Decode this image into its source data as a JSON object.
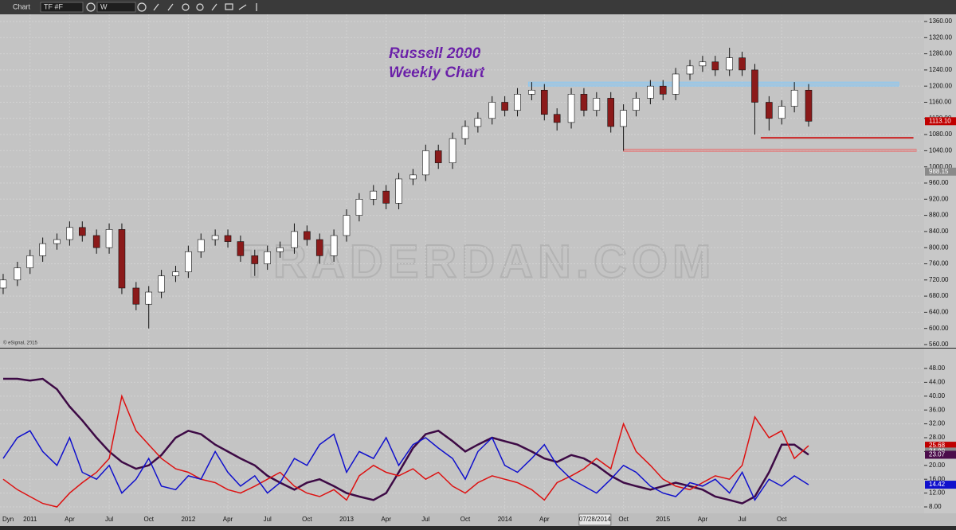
{
  "toolbar": {
    "window": "Chart",
    "symbol": "TF #F",
    "interval": "W"
  },
  "chart_data": [
    {
      "type": "candlestick",
      "title": "Russell 2000",
      "subtitle": "Weekly Chart",
      "watermark": "TRADERDAN.COM",
      "credit": "© eSignal, 2015",
      "up_color": "#ffffff",
      "down_color": "#8b1a1a",
      "x": [
        2010.83,
        2010.92,
        2011.0,
        2011.08,
        2011.17,
        2011.25,
        2011.33,
        2011.42,
        2011.5,
        2011.58,
        2011.67,
        2011.75,
        2011.83,
        2011.92,
        2012.0,
        2012.08,
        2012.17,
        2012.25,
        2012.33,
        2012.42,
        2012.5,
        2012.58,
        2012.67,
        2012.75,
        2012.83,
        2012.92,
        2013.0,
        2013.08,
        2013.17,
        2013.25,
        2013.33,
        2013.42,
        2013.5,
        2013.58,
        2013.67,
        2013.75,
        2013.83,
        2013.92,
        2014.0,
        2014.08,
        2014.17,
        2014.25,
        2014.33,
        2014.42,
        2014.5,
        2014.58,
        2014.67,
        2014.75,
        2014.83,
        2014.92,
        2015.0,
        2015.08,
        2015.17,
        2015.25,
        2015.33,
        2015.42,
        2015.5,
        2015.58,
        2015.67,
        2015.75,
        2015.83,
        2015.92
      ],
      "open": [
        700,
        720,
        750,
        780,
        810,
        820,
        850,
        830,
        800,
        845,
        700,
        660,
        690,
        730,
        740,
        790,
        820,
        830,
        815,
        780,
        760,
        790,
        800,
        840,
        820,
        780,
        830,
        880,
        920,
        940,
        910,
        970,
        980,
        1040,
        1010,
        1070,
        1100,
        1120,
        1160,
        1140,
        1180,
        1190,
        1130,
        1110,
        1180,
        1140,
        1170,
        1100,
        1140,
        1170,
        1200,
        1180,
        1230,
        1250,
        1260,
        1240,
        1270,
        1240,
        1160,
        1120,
        1150,
        1190
      ],
      "high": [
        735,
        765,
        795,
        825,
        835,
        865,
        865,
        845,
        860,
        860,
        715,
        705,
        745,
        755,
        805,
        835,
        845,
        845,
        830,
        795,
        805,
        815,
        860,
        855,
        835,
        845,
        895,
        935,
        955,
        955,
        985,
        995,
        1055,
        1055,
        1085,
        1115,
        1135,
        1175,
        1175,
        1195,
        1210,
        1205,
        1145,
        1195,
        1195,
        1185,
        1185,
        1155,
        1185,
        1215,
        1215,
        1245,
        1265,
        1275,
        1275,
        1295,
        1285,
        1255,
        1175,
        1165,
        1210,
        1205
      ],
      "low": [
        685,
        705,
        735,
        765,
        795,
        805,
        815,
        785,
        785,
        685,
        645,
        600,
        675,
        715,
        725,
        775,
        805,
        800,
        765,
        730,
        745,
        775,
        785,
        805,
        760,
        765,
        815,
        865,
        905,
        895,
        895,
        955,
        965,
        995,
        995,
        1055,
        1085,
        1105,
        1125,
        1125,
        1165,
        1115,
        1090,
        1095,
        1125,
        1125,
        1085,
        1040,
        1125,
        1155,
        1165,
        1165,
        1215,
        1235,
        1225,
        1225,
        1225,
        1080,
        1090,
        1105,
        1135,
        1100
      ],
      "close": [
        720,
        750,
        780,
        810,
        820,
        850,
        830,
        800,
        845,
        700,
        660,
        690,
        730,
        740,
        790,
        820,
        830,
        815,
        780,
        760,
        790,
        800,
        840,
        820,
        780,
        830,
        880,
        920,
        940,
        910,
        970,
        980,
        1040,
        1010,
        1070,
        1100,
        1120,
        1160,
        1140,
        1180,
        1190,
        1130,
        1110,
        1180,
        1140,
        1170,
        1100,
        1140,
        1170,
        1200,
        1180,
        1230,
        1250,
        1260,
        1240,
        1270,
        1240,
        1160,
        1120,
        1150,
        1190,
        1113.1
      ],
      "zones": [
        {
          "x": [
            2014.15,
            2016.49
          ],
          "y": [
            1200,
            1210
          ],
          "color": "#8fc8f0"
        },
        {
          "x": [
            2015.62,
            2016.58
          ],
          "y": [
            1071,
            1073
          ],
          "color": "#cc2222"
        },
        {
          "x": [
            2014.75,
            2016.6
          ],
          "y": [
            1038,
            1044
          ],
          "color": "#d88"
        }
      ],
      "markers": [
        {
          "value": 1113.1,
          "label": "1113.10",
          "color": "#c00000"
        },
        {
          "value": 988.15,
          "color": "#8a8a8a"
        }
      ],
      "ylim": [
        560,
        1360
      ],
      "yticks": [
        {
          "value": 560,
          "label": "560.00"
        },
        {
          "value": 600,
          "label": "600.00"
        },
        {
          "value": 640,
          "label": "640.00"
        },
        {
          "value": 680,
          "label": "680.00"
        },
        {
          "value": 720,
          "label": "720.00"
        },
        {
          "value": 760,
          "label": "760.00"
        },
        {
          "value": 800,
          "label": "800.00"
        },
        {
          "value": 840,
          "label": "840.00"
        },
        {
          "value": 880,
          "label": "880.00"
        },
        {
          "value": 920,
          "label": "920.00"
        },
        {
          "value": 960,
          "label": "960.00"
        },
        {
          "value": 1000,
          "label": "1000.00"
        },
        {
          "value": 1040,
          "label": "1040.00"
        },
        {
          "value": 1080,
          "label": "1080.00"
        },
        {
          "value": 1120,
          "label": "1120.00"
        },
        {
          "value": 1160,
          "label": "1160.00"
        },
        {
          "value": 1200,
          "label": "1200.00"
        },
        {
          "value": 1240,
          "label": "1240.00"
        },
        {
          "value": 1280,
          "label": "1280.00"
        },
        {
          "value": 1320,
          "label": "1320.00"
        },
        {
          "value": 1360,
          "label": "1360.00"
        }
      ],
      "grid": true
    },
    {
      "type": "line",
      "study": "Dyn",
      "cursor_date": {
        "value": 2014.57,
        "label": "07/28/2014"
      },
      "xlim": [
        2010.81,
        2016.65
      ],
      "xticks": [
        {
          "value": 2011,
          "label": "2011"
        },
        {
          "value": 2011.25,
          "label": "Apr"
        },
        {
          "value": 2011.5,
          "label": "Jul"
        },
        {
          "value": 2011.75,
          "label": "Oct"
        },
        {
          "value": 2012,
          "label": "2012"
        },
        {
          "value": 2012.25,
          "label": "Apr"
        },
        {
          "value": 2012.5,
          "label": "Jul"
        },
        {
          "value": 2012.75,
          "label": "Oct"
        },
        {
          "value": 2013,
          "label": "2013"
        },
        {
          "value": 2013.25,
          "label": "Apr"
        },
        {
          "value": 2013.5,
          "label": "Jul"
        },
        {
          "value": 2013.75,
          "label": "Oct"
        },
        {
          "value": 2014,
          "label": "2014"
        },
        {
          "value": 2014.25,
          "label": "Apr"
        },
        {
          "value": 2014.75,
          "label": "Oct"
        },
        {
          "value": 2015,
          "label": "2015"
        },
        {
          "value": 2015.25,
          "label": "Apr"
        },
        {
          "value": 2015.5,
          "label": "Jul"
        },
        {
          "value": 2015.75,
          "label": "Oct"
        }
      ],
      "series": [
        {
          "color": "#3d0a45",
          "width": 2.5,
          "values": [
            45,
            45,
            44.5,
            45,
            42,
            37,
            33,
            28,
            24,
            21,
            19,
            20,
            23,
            28,
            30,
            29,
            26,
            24,
            22,
            20,
            17,
            15,
            13,
            15,
            16,
            14,
            12,
            11,
            10,
            12,
            18,
            25,
            29,
            30,
            27,
            24,
            26,
            28,
            27,
            26,
            24,
            22,
            21,
            23,
            22,
            20,
            17,
            15,
            14,
            13,
            14,
            15,
            14,
            13,
            11,
            10,
            9,
            11,
            18,
            26,
            26,
            23.07
          ]
        },
        {
          "color": "#dd1111",
          "width": 1.5,
          "values": [
            16,
            13,
            11,
            9,
            8,
            12,
            15,
            18,
            22,
            40,
            30,
            26,
            22,
            19,
            18,
            16,
            15,
            13,
            12,
            14,
            16,
            18,
            14,
            12,
            11,
            13,
            10,
            17,
            20,
            18,
            17,
            19,
            16,
            18,
            14,
            12,
            15,
            17,
            16,
            15,
            13,
            10,
            15,
            17,
            19,
            22,
            19,
            32,
            24,
            20,
            16,
            14,
            13,
            15,
            17,
            16,
            20,
            34,
            28,
            30,
            22,
            25.68
          ]
        },
        {
          "color": "#1010cc",
          "width": 1.5,
          "values": [
            22,
            28,
            30,
            24,
            20,
            28,
            18,
            16,
            20,
            12,
            16,
            22,
            14,
            13,
            17,
            16,
            24,
            18,
            14,
            17,
            12,
            15,
            22,
            20,
            26,
            29,
            18,
            24,
            22,
            28,
            20,
            26,
            28,
            25,
            22,
            16,
            24,
            28,
            20,
            18,
            22,
            26,
            20,
            16,
            14,
            12,
            16,
            20,
            18,
            14,
            12,
            11,
            15,
            14,
            16,
            12,
            18,
            10,
            16,
            14,
            17,
            14.42
          ]
        }
      ],
      "markers": [
        {
          "value": 25.68,
          "color": "#c00000"
        },
        {
          "value": 24,
          "label": "24.00",
          "color": "#8a8a8a"
        },
        {
          "value": 23.07,
          "color": "#4b0c4b"
        },
        {
          "value": 14.42,
          "color": "#1010cc"
        }
      ],
      "ylim": [
        8,
        48
      ],
      "yticks": [
        {
          "value": 8,
          "label": "8.00"
        },
        {
          "value": 12,
          "label": "12.00"
        },
        {
          "value": 16,
          "label": "16.00"
        },
        {
          "value": 20,
          "label": "20.00"
        },
        {
          "value": 24,
          "label": "24.00"
        },
        {
          "value": 28,
          "label": "28.00"
        },
        {
          "value": 32,
          "label": "32.00"
        },
        {
          "value": 36,
          "label": "36.00"
        },
        {
          "value": 40,
          "label": "40.00"
        },
        {
          "value": 44,
          "label": "44.00"
        },
        {
          "value": 48,
          "label": "48.00"
        }
      ],
      "grid": true
    }
  ]
}
